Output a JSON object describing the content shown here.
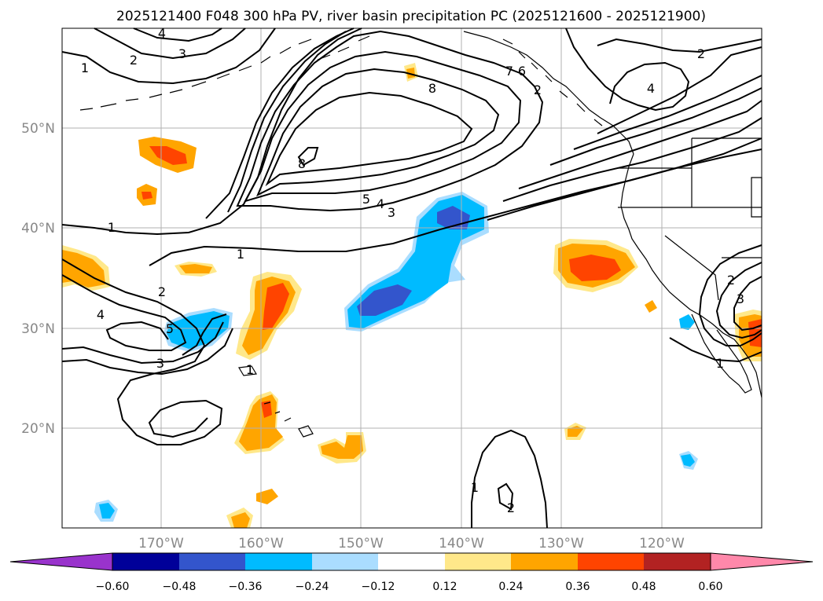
{
  "title": "2025121400 F048 300 hPa PV, river basin precipitation PC (2025121600 - 2025121900)",
  "lat_labels": [
    "50°N",
    "40°N",
    "30°N",
    "20°N"
  ],
  "lon_labels": [
    "170°W",
    "160°W",
    "150°W",
    "140°W",
    "130°W",
    "120°W"
  ],
  "colorbar": {
    "tick_labels": [
      "−0.60",
      "−0.48",
      "−0.36",
      "−0.24",
      "−0.12",
      "0.12",
      "0.24",
      "0.36",
      "0.48",
      "0.60"
    ],
    "colors": [
      "#9933cc",
      "#000099",
      "#3355cc",
      "#00bbff",
      "#aaddff",
      "#ffffff",
      "#ffe88a",
      "#ffa500",
      "#ff4400",
      "#b22222",
      "#ff88aa"
    ],
    "extend_min_color": "#9933cc",
    "extend_max_color": "#ff88aa"
  },
  "contour_labels": [
    "4",
    "3",
    "2",
    "1",
    "8",
    "7",
    "6",
    "5",
    "4",
    "3",
    "1",
    "1",
    "2",
    "4",
    "5",
    "3",
    "1",
    "2",
    "1",
    "2",
    "2",
    "3",
    "1",
    "2",
    "4",
    "8"
  ],
  "legend_colors": {
    "orange": "#ffa500",
    "red_orange": "#ff4400",
    "light_yellow": "#ffe88a",
    "cyan": "#00bbff",
    "blue": "#3355cc",
    "light_blue": "#aaddff"
  }
}
